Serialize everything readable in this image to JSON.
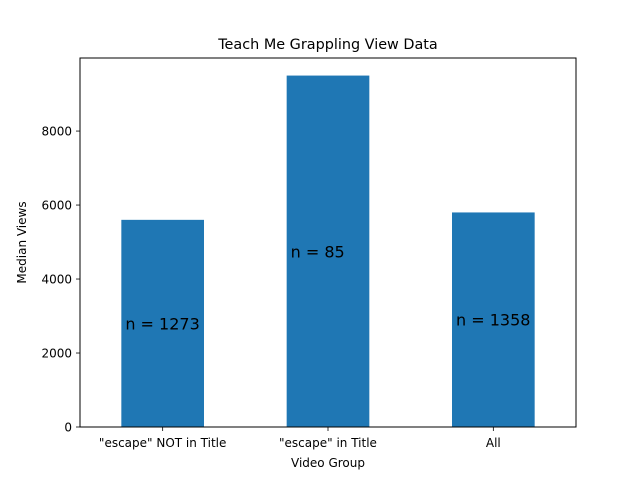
{
  "chart_data": {
    "type": "bar",
    "title": "Teach Me Grappling View Data",
    "xlabel": "Video Group",
    "ylabel": "Median Views",
    "categories": [
      "\"escape\" NOT in Title",
      "\"escape\" in Title",
      "All"
    ],
    "values": [
      5600,
      9500,
      5800
    ],
    "bar_labels": [
      "n = 1273",
      "n = 85",
      "n = 1358"
    ],
    "ylim": [
      0,
      9975
    ],
    "yticks": [
      0,
      2000,
      4000,
      6000,
      8000
    ],
    "ytick_labels": [
      "0",
      "2000",
      "4000",
      "6000",
      "8000"
    ],
    "bar_color": "#1f77b4",
    "grid": false,
    "legend": "none"
  }
}
